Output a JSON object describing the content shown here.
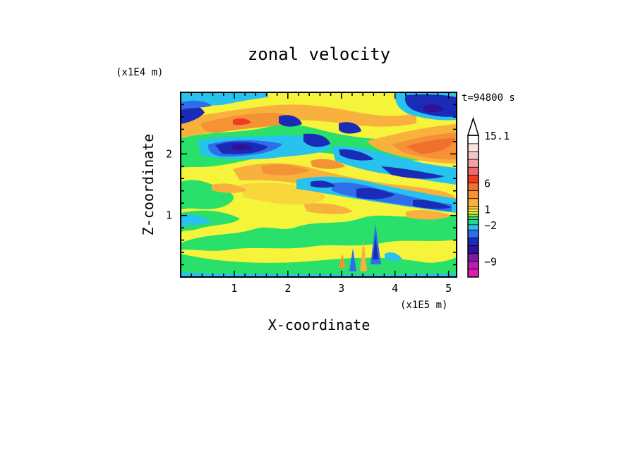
{
  "chart_data": {
    "type": "heatmap",
    "title": "zonal velocity",
    "xlabel": "X-coordinate",
    "ylabel": "Z-coordinate",
    "x_unit": "(x1E5 m)",
    "y_unit": "(x1E4 m)",
    "time_label": "t=94800 s",
    "xlim": [
      0,
      5.15
    ],
    "ylim": [
      0,
      3.0
    ],
    "x_ticks": [
      1,
      2,
      3,
      4,
      5
    ],
    "y_ticks": [
      1,
      2
    ],
    "colorbar": {
      "levels": [
        -12,
        -10.5,
        -9,
        -7.5,
        -6,
        -4.5,
        -3,
        -2,
        -1,
        -0.5,
        0,
        0.5,
        1,
        1.5,
        3,
        4.5,
        6,
        7.5,
        9,
        10.5,
        12,
        13.5,
        15.1
      ],
      "labeled": [
        "15.1",
        "6",
        "1",
        "-2",
        "-9"
      ],
      "extend": "max",
      "colors": [
        "#e31bb3",
        "#b71eb0",
        "#7e1a9c",
        "#30119a",
        "#1a2bb8",
        "#2f6dea",
        "#28c2ef",
        "#23d79b",
        "#28e06a",
        "#8fe84b",
        "#e7ed3a",
        "#f6f43a",
        "#f9d73b",
        "#f8b13c",
        "#f59235",
        "#f0702e",
        "#ee3d24",
        "#f0696a",
        "#f4a2a3",
        "#f6c4c4",
        "#fbe3e3"
      ]
    },
    "field_description": "Layered bands of zonal wind: strong westward (blue/purple) jets near z≈2.0–2.2 and 2.8 (x1E4 m), eastward (orange/red) cores near z≈2.5 and 1.7, weak green/yellow values below 1.2 with small-scale features near x≈3–3.7 close to the surface."
  }
}
